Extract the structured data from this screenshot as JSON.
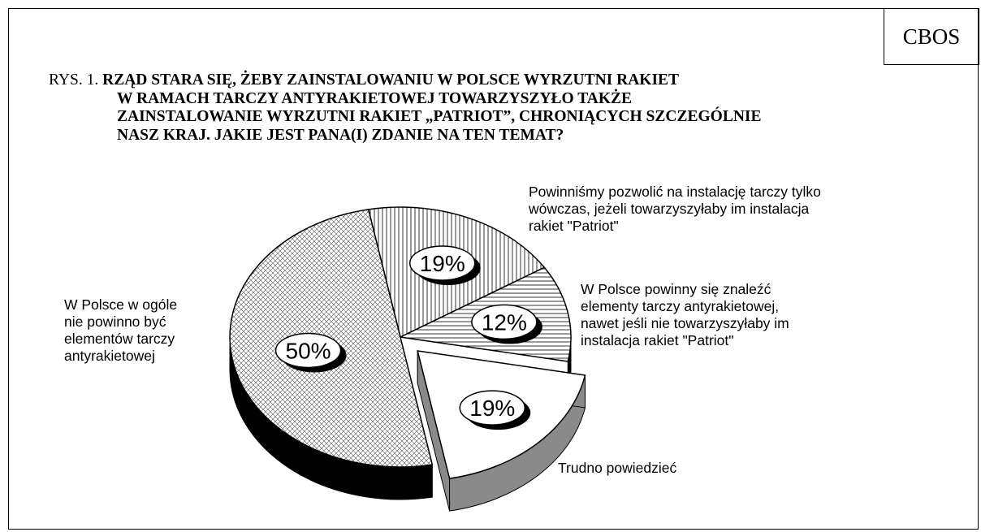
{
  "brand": "CBOS",
  "title": {
    "prefix": "RYS. 1. ",
    "lines": [
      "RZĄD STARA SIĘ, ŻEBY ZAINSTALOWANIU W POLSCE WYRZUTNI RAKIET",
      "W  RAMACH TARCZY ANTYRAKIETOWEJ TOWARZYSZYŁO TAKŻE",
      "ZAINSTALOWANIE WYRZUTNI RAKIET „PATRIOT”, CHRONIĄCYCH SZCZEGÓLNIE",
      "NASZ KRAJ. JAKIE JEST PANA(I) ZDANIE NA TEN TEMAT?"
    ]
  },
  "chart_data": {
    "type": "pie",
    "title": "RZĄD STARA SIĘ, ŻEBY ZAINSTALOWANIU W POLSCE WYRZUTNI RAKIET W RAMACH TARCZY ANTYRAKIETOWEJ TOWARZYSZYŁO TAKŻE ZAINSTALOWANIE WYRZUTNI RAKIET „PATRIOT”, CHRONIĄCYCH SZCZEGÓLNIE NASZ KRAJ. JAKIE JEST PANA(I) ZDANIE NA TEN TEMAT?",
    "unit": "%",
    "style": "3d-exploded",
    "slices": [
      {
        "key": "patriot",
        "value": 19,
        "value_label": "19%",
        "label_lines": [
          "Powinniśmy pozwolić na instalację tarczy tylko",
          "wówczas, jeżeli towarzyszyłaby im instalacja",
          "rakiet \"Patriot\""
        ],
        "fill": "vertical-lines",
        "exploded": false
      },
      {
        "key": "elements",
        "value": 12,
        "value_label": "12%",
        "label_lines": [
          "W Polsce powinny się znaleźć",
          "elementy tarczy antyrakietowej,",
          "nawet jeśli nie towarzyszyłaby im",
          "instalacja rakiet \"Patriot\""
        ],
        "fill": "horizontal-lines",
        "exploded": false
      },
      {
        "key": "hard",
        "value": 19,
        "value_label": "19%",
        "label_lines": [
          "Trudno powiedzieć"
        ],
        "fill": "white",
        "exploded": true
      },
      {
        "key": "none",
        "value": 50,
        "value_label": "50%",
        "label_lines": [
          "W Polsce w ogóle",
          "nie powinno być",
          "elementów tarczy",
          "antyrakietowej"
        ],
        "fill": "crosshatch",
        "exploded": false
      }
    ]
  }
}
